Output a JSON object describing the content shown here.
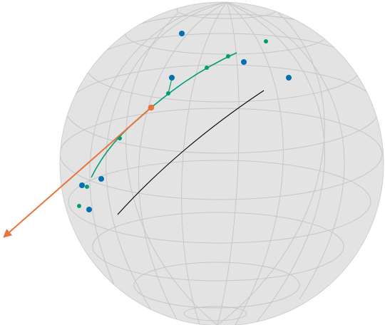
{
  "scene": {
    "description_colors": {
      "sphere_fill": "#e3e3e3",
      "grid_line": "#c4c4c4",
      "blue_points": "#0072b2",
      "teal_path": "#009e73",
      "orange_vector": "#e8743b",
      "black_curve": "#000000"
    }
  }
}
